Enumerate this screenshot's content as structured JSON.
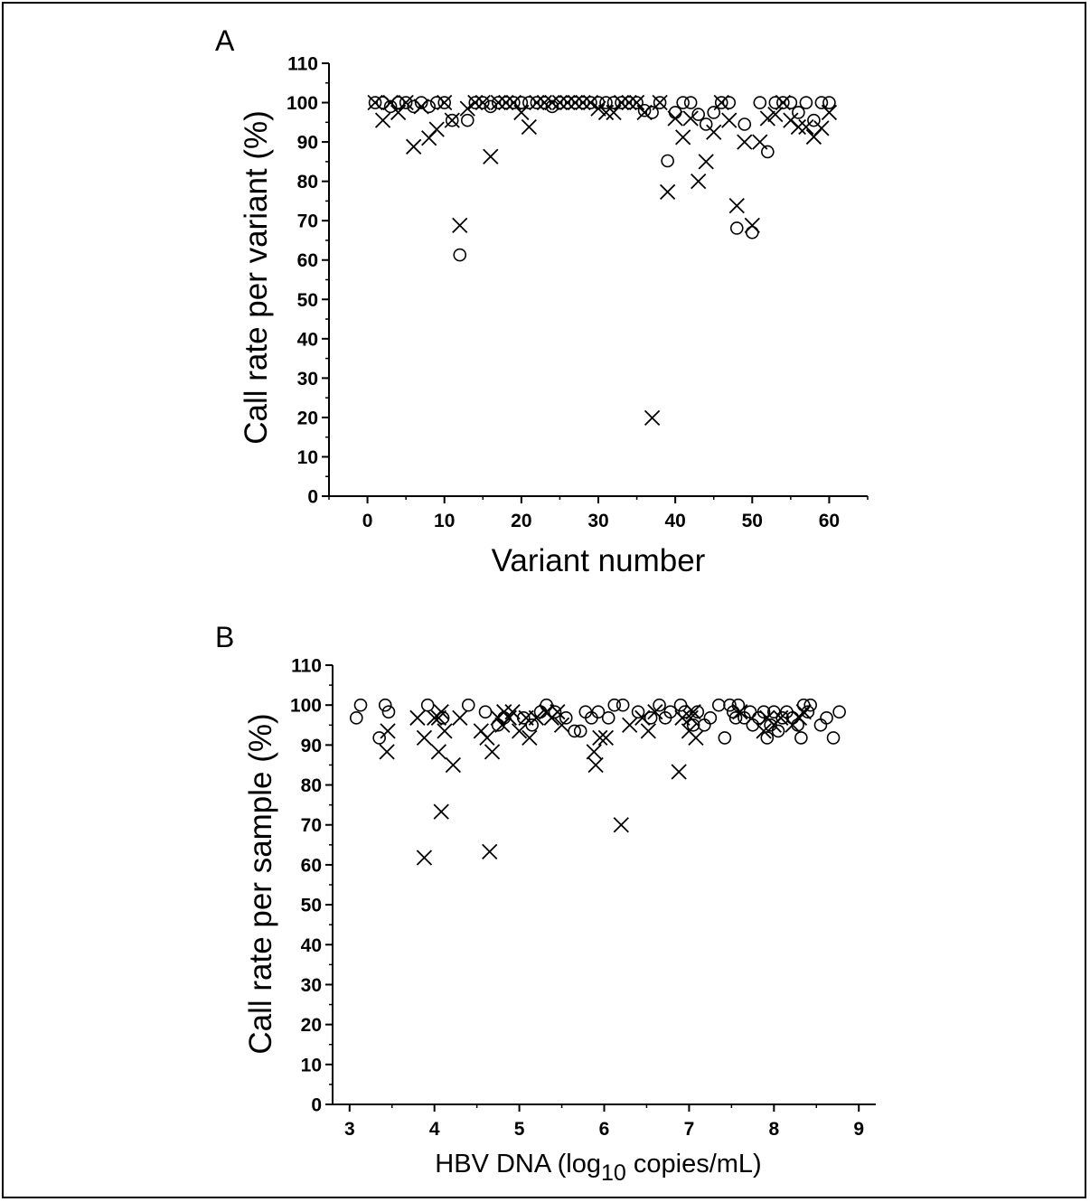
{
  "chart_data": [
    {
      "type": "scatter",
      "panel_label": "A",
      "xlabel": "Variant number",
      "ylabel": "Call rate per variant (%)",
      "xlim": [
        -5,
        65
      ],
      "ylim": [
        0,
        110
      ],
      "x_ticks": [
        0,
        10,
        20,
        30,
        40,
        50,
        60
      ],
      "x_tick_labels": [
        "0",
        "10",
        "20",
        "30",
        "40",
        "50",
        "60"
      ],
      "y_ticks": [
        0,
        10,
        20,
        30,
        40,
        50,
        60,
        70,
        80,
        90,
        100,
        110
      ],
      "y_tick_labels": [
        "0",
        "10",
        "20",
        "30",
        "40",
        "50",
        "60",
        "70",
        "80",
        "90",
        "100",
        "110"
      ],
      "grid": false,
      "series": [
        {
          "marker": "circle",
          "points": [
            [
              1,
              100
            ],
            [
              2,
              100
            ],
            [
              3,
              99
            ],
            [
              4,
              100
            ],
            [
              5,
              100
            ],
            [
              6,
              99
            ],
            [
              7,
              100
            ],
            [
              8,
              99
            ],
            [
              9,
              100
            ],
            [
              10,
              100
            ],
            [
              11,
              95.5
            ],
            [
              12,
              61.3
            ],
            [
              13,
              95.5
            ],
            [
              14,
              100
            ],
            [
              15,
              100
            ],
            [
              16,
              99
            ],
            [
              17,
              100
            ],
            [
              18,
              100
            ],
            [
              19,
              100
            ],
            [
              20,
              100
            ],
            [
              21,
              100
            ],
            [
              22,
              100
            ],
            [
              23,
              100
            ],
            [
              24,
              99
            ],
            [
              25,
              100
            ],
            [
              26,
              100
            ],
            [
              27,
              100
            ],
            [
              28,
              100
            ],
            [
              29,
              100
            ],
            [
              30,
              100
            ],
            [
              31,
              100
            ],
            [
              32,
              100
            ],
            [
              33,
              100
            ],
            [
              34,
              100
            ],
            [
              35,
              100
            ],
            [
              36,
              98
            ],
            [
              37,
              97.5
            ],
            [
              38,
              100
            ],
            [
              39,
              85.2
            ],
            [
              40,
              97.5
            ],
            [
              41,
              100
            ],
            [
              42,
              100
            ],
            [
              43,
              97
            ],
            [
              44,
              94.5
            ],
            [
              45,
              97.5
            ],
            [
              46,
              100
            ],
            [
              47,
              100
            ],
            [
              48,
              68.1
            ],
            [
              49,
              94.5
            ],
            [
              50,
              67
            ],
            [
              51,
              100
            ],
            [
              52,
              87.5
            ],
            [
              53,
              100
            ],
            [
              54,
              100
            ],
            [
              55,
              100
            ],
            [
              56,
              97.5
            ],
            [
              57,
              100
            ],
            [
              58,
              95.5
            ],
            [
              59,
              100
            ],
            [
              60,
              100
            ]
          ]
        },
        {
          "marker": "cross",
          "points": [
            [
              1,
              100
            ],
            [
              2,
              95.5
            ],
            [
              3,
              100
            ],
            [
              4,
              97.5
            ],
            [
              5,
              100
            ],
            [
              6,
              88.8
            ],
            [
              7,
              99
            ],
            [
              8,
              91
            ],
            [
              9,
              93.2
            ],
            [
              10,
              100
            ],
            [
              11,
              95.5
            ],
            [
              12,
              68.8
            ],
            [
              13,
              98.5
            ],
            [
              14,
              100
            ],
            [
              15,
              100
            ],
            [
              16,
              86.3
            ],
            [
              17,
              100
            ],
            [
              18,
              100
            ],
            [
              19,
              100
            ],
            [
              20,
              97.5
            ],
            [
              21,
              93.8
            ],
            [
              22,
              100
            ],
            [
              23,
              100
            ],
            [
              24,
              100
            ],
            [
              25,
              100
            ],
            [
              26,
              100
            ],
            [
              27,
              100
            ],
            [
              28,
              100
            ],
            [
              29,
              100
            ],
            [
              30,
              98.5
            ],
            [
              31,
              97.5
            ],
            [
              32,
              97.5
            ],
            [
              33,
              100
            ],
            [
              34,
              100
            ],
            [
              35,
              100
            ],
            [
              36,
              97.5
            ],
            [
              37,
              19.9
            ],
            [
              38,
              100
            ],
            [
              39,
              77.3
            ],
            [
              40,
              96
            ],
            [
              41,
              91.2
            ],
            [
              42,
              96
            ],
            [
              43,
              80
            ],
            [
              44,
              85
            ],
            [
              45,
              92.5
            ],
            [
              46,
              100
            ],
            [
              47,
              95.5
            ],
            [
              48,
              73.8
            ],
            [
              49,
              90
            ],
            [
              50,
              68.8
            ],
            [
              51,
              90
            ],
            [
              52,
              96
            ],
            [
              53,
              97
            ],
            [
              54,
              100
            ],
            [
              55,
              95.5
            ],
            [
              56,
              93.8
            ],
            [
              57,
              93.8
            ],
            [
              58,
              91.3
            ],
            [
              59,
              93.5
            ],
            [
              60,
              97.5
            ]
          ]
        }
      ]
    },
    {
      "type": "scatter",
      "panel_label": "B",
      "xlabel_prefix": "HBV DNA (log",
      "xlabel_sub": "10",
      "xlabel_suffix": " copies/mL)",
      "ylabel": "Call rate per sample (%)",
      "xlim": [
        2.8,
        9.2
      ],
      "ylim": [
        0,
        110
      ],
      "x_ticks": [
        3,
        4,
        5,
        6,
        7,
        8,
        9
      ],
      "x_tick_labels": [
        "3",
        "4",
        "5",
        "6",
        "7",
        "8",
        "9"
      ],
      "y_ticks": [
        0,
        10,
        20,
        30,
        40,
        50,
        60,
        70,
        80,
        90,
        100,
        110
      ],
      "y_tick_labels": [
        "0",
        "10",
        "20",
        "30",
        "40",
        "50",
        "60",
        "70",
        "80",
        "90",
        "100",
        "110"
      ],
      "grid": false,
      "series": [
        {
          "marker": "circle",
          "points": [
            [
              3.08,
              96.8
            ],
            [
              3.13,
              100
            ],
            [
              3.35,
              91.8
            ],
            [
              3.42,
              100
            ],
            [
              3.46,
              98.3
            ],
            [
              3.92,
              100
            ],
            [
              4.1,
              96.8
            ],
            [
              4.4,
              100
            ],
            [
              4.6,
              98.3
            ],
            [
              4.75,
              95
            ],
            [
              4.82,
              96.8
            ],
            [
              5.05,
              96.8
            ],
            [
              5.15,
              95
            ],
            [
              5.25,
              98.3
            ],
            [
              5.32,
              100
            ],
            [
              5.42,
              98.3
            ],
            [
              5.55,
              96.8
            ],
            [
              5.65,
              93.5
            ],
            [
              5.72,
              93.5
            ],
            [
              5.78,
              98.3
            ],
            [
              5.85,
              96.8
            ],
            [
              5.93,
              98.3
            ],
            [
              6.05,
              96.8
            ],
            [
              6.12,
              100
            ],
            [
              6.22,
              100
            ],
            [
              6.4,
              98.3
            ],
            [
              6.55,
              96.8
            ],
            [
              6.65,
              100
            ],
            [
              6.72,
              96.8
            ],
            [
              6.78,
              98.3
            ],
            [
              6.9,
              100
            ],
            [
              6.95,
              98.3
            ],
            [
              7.05,
              95
            ],
            [
              7.1,
              98.3
            ],
            [
              7.18,
              95
            ],
            [
              7.25,
              96.8
            ],
            [
              7.35,
              100
            ],
            [
              7.42,
              91.8
            ],
            [
              7.48,
              100
            ],
            [
              7.52,
              98.3
            ],
            [
              7.55,
              96.8
            ],
            [
              7.58,
              100
            ],
            [
              7.65,
              96.8
            ],
            [
              7.72,
              98.3
            ],
            [
              7.75,
              95
            ],
            [
              7.82,
              96.8
            ],
            [
              7.88,
              98.3
            ],
            [
              7.92,
              91.8
            ],
            [
              7.96,
              95
            ],
            [
              8.0,
              98.3
            ],
            [
              8.05,
              93.5
            ],
            [
              8.1,
              96.8
            ],
            [
              8.15,
              98.3
            ],
            [
              8.22,
              96.8
            ],
            [
              8.28,
              95
            ],
            [
              8.32,
              91.8
            ],
            [
              8.35,
              100
            ],
            [
              8.4,
              98.3
            ],
            [
              8.43,
              100
            ],
            [
              8.55,
              95
            ],
            [
              8.62,
              96.8
            ],
            [
              8.7,
              91.8
            ],
            [
              8.77,
              98.3
            ]
          ]
        },
        {
          "marker": "cross",
          "points": [
            [
              3.45,
              93.5
            ],
            [
              3.44,
              88.3
            ],
            [
              3.8,
              96.8
            ],
            [
              3.88,
              91.8
            ],
            [
              3.88,
              61.8
            ],
            [
              4.0,
              96.8
            ],
            [
              4.05,
              96.8
            ],
            [
              4.08,
              98.3
            ],
            [
              4.05,
              88.3
            ],
            [
              4.08,
              73.3
            ],
            [
              4.12,
              93.5
            ],
            [
              4.22,
              85
            ],
            [
              4.3,
              96.8
            ],
            [
              4.55,
              93.5
            ],
            [
              4.62,
              91.8
            ],
            [
              4.65,
              63.3
            ],
            [
              4.68,
              88.3
            ],
            [
              4.75,
              96.8
            ],
            [
              4.8,
              95
            ],
            [
              4.82,
              98.3
            ],
            [
              4.88,
              96.8
            ],
            [
              4.92,
              98.3
            ],
            [
              5.0,
              93.5
            ],
            [
              5.08,
              96.8
            ],
            [
              5.12,
              91.8
            ],
            [
              5.2,
              96.8
            ],
            [
              5.32,
              98.3
            ],
            [
              5.38,
              96.8
            ],
            [
              5.45,
              98.3
            ],
            [
              5.5,
              95
            ],
            [
              5.88,
              88.3
            ],
            [
              5.9,
              85
            ],
            [
              5.95,
              91.8
            ],
            [
              6.02,
              91.8
            ],
            [
              6.2,
              70
            ],
            [
              6.3,
              95
            ],
            [
              6.45,
              96.8
            ],
            [
              6.52,
              93.5
            ],
            [
              6.6,
              98.3
            ],
            [
              6.88,
              83.3
            ],
            [
              6.92,
              96.8
            ],
            [
              7.0,
              93.5
            ],
            [
              7.02,
              96.8
            ],
            [
              7.05,
              98.3
            ],
            [
              7.08,
              91.8
            ],
            [
              7.6,
              98.3
            ],
            [
              7.88,
              93.5
            ],
            [
              7.92,
              96.8
            ],
            [
              8.0,
              95
            ],
            [
              8.08,
              96.8
            ],
            [
              8.22,
              95
            ],
            [
              8.3,
              96.8
            ],
            [
              8.35,
              98.3
            ]
          ]
        }
      ]
    }
  ]
}
